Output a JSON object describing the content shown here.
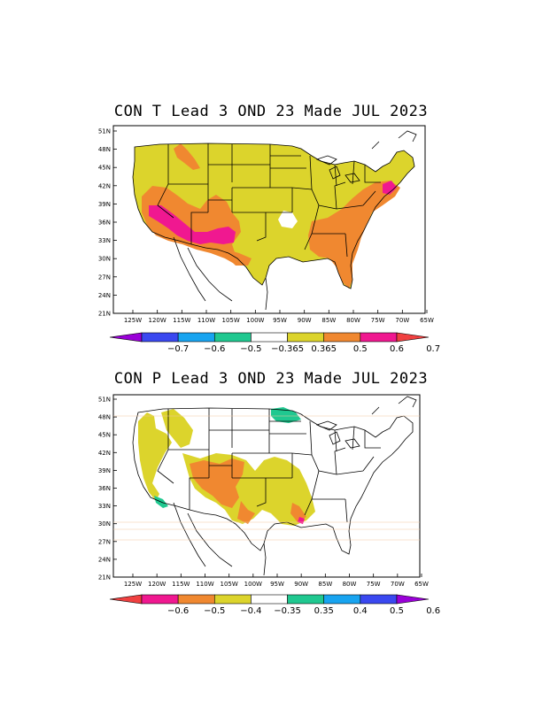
{
  "panels": [
    {
      "title": "CON T Lead 3 OND 23 Made JUL 2023",
      "lat_labels": [
        "51N",
        "48N",
        "45N",
        "42N",
        "39N",
        "36N",
        "33N",
        "30N",
        "27N",
        "24N",
        "21N"
      ],
      "lon_labels": [
        "125W",
        "120W",
        "115W",
        "110W",
        "105W",
        "100W",
        "95W",
        "90W",
        "85W",
        "80W",
        "75W",
        "70W",
        "65W"
      ],
      "colorbar": {
        "labels": [
          "−0.7",
          "−0.6",
          "−0.5",
          "−0.365",
          "0.365",
          "0.5",
          "0.6",
          "0.7"
        ],
        "colors": [
          "#9a00d8",
          "#3a48f0",
          "#18a4f0",
          "#20c890",
          "#ffffff",
          "#dcd42c",
          "#f08830",
          "#f01890",
          "#f04040"
        ]
      },
      "fill_colors": {
        "low": "#dcd42c",
        "mid": "#f08830",
        "high": "#f01890"
      }
    },
    {
      "title": "CON P  Lead 3 OND 23 Made JUL 2023",
      "lat_labels": [
        "51N",
        "48N",
        "45N",
        "42N",
        "39N",
        "36N",
        "33N",
        "30N",
        "27N",
        "24N",
        "21N"
      ],
      "lon_labels": [
        "125W",
        "120W",
        "115W",
        "110W",
        "105W",
        "100W",
        "95W",
        "90W",
        "85W",
        "80W",
        "75W",
        "70W",
        "65W"
      ],
      "colorbar": {
        "labels": [
          "−0.6",
          "−0.5",
          "−0.4",
          "−0.35",
          "0.35",
          "0.4",
          "0.5",
          "0.6"
        ],
        "colors": [
          "#f04040",
          "#f01890",
          "#f08830",
          "#dcd42c",
          "#ffffff",
          "#20c890",
          "#18a4f0",
          "#3a48f0",
          "#9a00d8"
        ]
      },
      "fill_colors": {
        "dry_low": "#dcd42c",
        "dry_mid": "#f08830",
        "dry_high": "#f01890",
        "wet_low": "#20c890"
      }
    }
  ]
}
